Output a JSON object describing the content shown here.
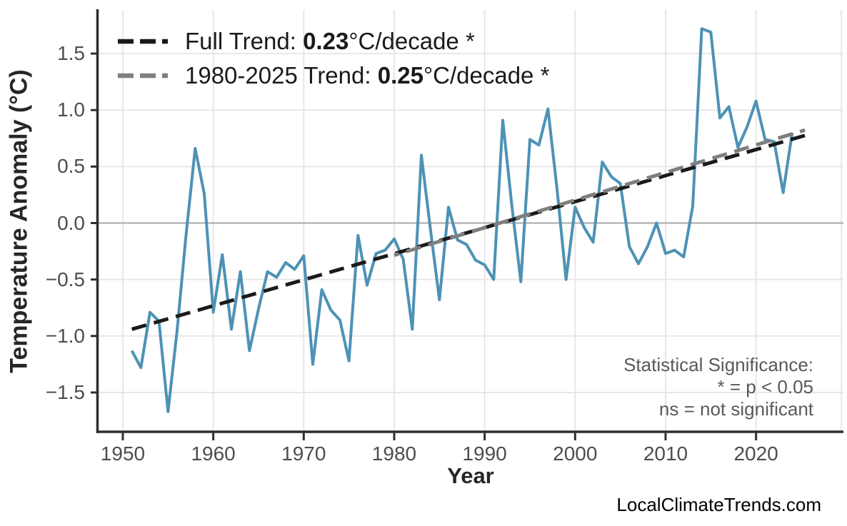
{
  "watermark": "LocalClimateTrends.com",
  "legend": {
    "items": [
      {
        "prefix": "Full Trend: ",
        "value": "0.23",
        "suffix": "°C/decade *",
        "color": "#1a1a1a"
      },
      {
        "prefix": "1980-2025 Trend: ",
        "value": "0.25",
        "suffix": "°C/decade *",
        "color": "#7f7f7f"
      }
    ]
  },
  "annotation": {
    "lines": [
      "Statistical Significance:",
      "* = p < 0.05",
      "ns = not significant"
    ]
  },
  "style": {
    "series_blue": "#4d92b5",
    "trend_black": "#1a1a1a",
    "trend_gray": "#7f7f7f",
    "grid_color": "#e5e5e5",
    "zero_line_color": "#b0b0b0",
    "spine_color": "#2e2e2e",
    "tick_label_color": "#4d4d4d",
    "axis_title_color": "#262626",
    "annotation_color": "#595959",
    "watermark_color": "#000000"
  },
  "chart_data": {
    "type": "line",
    "title": "",
    "xlabel": "Year",
    "ylabel": "Temperature Anomaly (°C)",
    "grid": true,
    "legend_position": "upper-left",
    "xlim": [
      1947.24,
      2029.66
    ],
    "ylim": [
      -1.848,
      1.886
    ],
    "x_tick_values": [
      1950,
      1960,
      1970,
      1980,
      1990,
      2000,
      2010,
      2020
    ],
    "x_tick_labels": [
      "1950",
      "1960",
      "1970",
      "1980",
      "1990",
      "2000",
      "2010",
      "2020"
    ],
    "y_tick_values": [
      1.5,
      1.0,
      0.5,
      0.0,
      -0.5,
      -1.0,
      -1.5
    ],
    "y_tick_labels": [
      "1.5",
      "1.0",
      "0.5",
      "0.0",
      "−0.5",
      "−1.0",
      "−1.5"
    ],
    "series": [
      {
        "name": "Temperature Anomaly",
        "color": "#4d92b5",
        "x": [
          1951,
          1952,
          1953,
          1954,
          1955,
          1956,
          1957,
          1958,
          1959,
          1960,
          1961,
          1962,
          1963,
          1964,
          1965,
          1966,
          1967,
          1968,
          1969,
          1970,
          1971,
          1972,
          1973,
          1974,
          1975,
          1976,
          1977,
          1978,
          1979,
          1980,
          1981,
          1982,
          1983,
          1984,
          1985,
          1986,
          1987,
          1988,
          1989,
          1990,
          1991,
          1992,
          1993,
          1994,
          1995,
          1996,
          1997,
          1998,
          1999,
          2000,
          2001,
          2002,
          2003,
          2004,
          2005,
          2006,
          2007,
          2008,
          2009,
          2010,
          2011,
          2012,
          2013,
          2014,
          2015,
          2016,
          2017,
          2018,
          2019,
          2020,
          2021,
          2022,
          2023,
          2024
        ],
        "values": [
          -1.13,
          -1.28,
          -0.79,
          -0.87,
          -1.67,
          -0.95,
          -0.1,
          0.66,
          0.26,
          -0.79,
          -0.28,
          -0.94,
          -0.43,
          -1.13,
          -0.76,
          -0.43,
          -0.48,
          -0.35,
          -0.41,
          -0.29,
          -1.25,
          -0.59,
          -0.77,
          -0.86,
          -1.22,
          -0.11,
          -0.55,
          -0.27,
          -0.24,
          -0.14,
          -0.32,
          -0.94,
          0.6,
          -0.05,
          -0.68,
          0.14,
          -0.15,
          -0.19,
          -0.33,
          -0.37,
          -0.5,
          0.91,
          0.16,
          -0.52,
          0.74,
          0.69,
          1.01,
          0.3,
          -0.5,
          0.14,
          -0.04,
          -0.17,
          0.54,
          0.41,
          0.35,
          -0.21,
          -0.36,
          -0.21,
          0.0,
          -0.27,
          -0.24,
          -0.3,
          0.15,
          1.72,
          1.69,
          0.93,
          1.03,
          0.67,
          0.85,
          1.08,
          0.74,
          0.72,
          0.27,
          0.8
        ]
      }
    ],
    "trends": [
      {
        "name": "Full Trend",
        "rate_c_per_decade": 0.23,
        "significant": true,
        "color": "#1a1a1a",
        "x": [
          1951,
          2025.4
        ],
        "values": [
          -0.94,
          0.775
        ]
      },
      {
        "name": "1980-2025 Trend",
        "rate_c_per_decade": 0.25,
        "significant": true,
        "color": "#7f7f7f",
        "x": [
          1980,
          2025.4
        ],
        "values": [
          -0.285,
          0.823
        ]
      }
    ]
  }
}
